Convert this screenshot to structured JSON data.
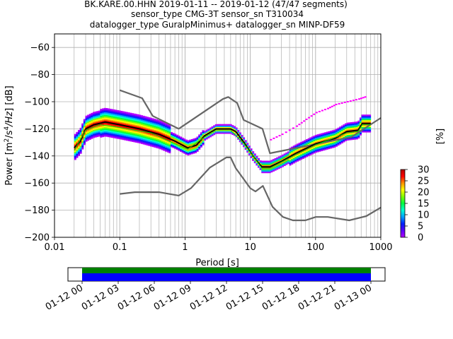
{
  "figure": {
    "title_lines": [
      "BK.KARE.00.HHN   2019-01-11 -- 2019-01-12  (47/47 segments)",
      "sensor_type CMG-3T sensor_sn T310034",
      "datalogger_type GuralpMinimus+ datalogger_sn MINP-DF59"
    ]
  },
  "chart_data": [
    {
      "type": "heatmap",
      "subtype": "ppsd",
      "xlabel": "Period [s]",
      "ylabel": "Power [$m^2/s^4/Hz$] [dB]",
      "xscale": "log",
      "xlim": [
        0.01,
        1000
      ],
      "ylim": [
        -200,
        -50
      ],
      "x_ticks": [
        0.01,
        0.1,
        1,
        10,
        100,
        1000
      ],
      "x_tick_labels": [
        "0.01",
        "0.1",
        "1",
        "10",
        "100",
        "1000"
      ],
      "y_ticks": [
        -200,
        -180,
        -160,
        -140,
        -120,
        -100,
        -80,
        -60
      ],
      "y_tick_labels": [
        "−200",
        "−180",
        "−160",
        "−140",
        "−120",
        "−100",
        "−80",
        "−60"
      ],
      "grid": true,
      "colorbar": {
        "label": "[%]",
        "range": [
          0,
          30
        ],
        "ticks": [
          0,
          5,
          10,
          15,
          20,
          25,
          30
        ],
        "tick_labels": [
          "0",
          "5",
          "10",
          "15",
          "20",
          "25",
          "30"
        ],
        "colors": [
          "#ffffff",
          "#b300ff",
          "#5a00ff",
          "#0020ff",
          "#00a0ff",
          "#00ffd0",
          "#00ff40",
          "#80ff00",
          "#ffff00",
          "#ff9000",
          "#ff0000",
          "#b00000"
        ]
      },
      "series": [
        {
          "role": "nhnm",
          "color": "#666666",
          "points": [
            [
              0.1,
              -91.5
            ],
            [
              0.22,
              -97.4
            ],
            [
              0.32,
              -110.5
            ],
            [
              0.8,
              -120
            ],
            [
              3.8,
              -98
            ],
            [
              4.6,
              -96.5
            ],
            [
              6.3,
              -101
            ],
            [
              7.9,
              -113.5
            ],
            [
              15.4,
              -120
            ],
            [
              20,
              -138
            ],
            [
              354.8,
              -126
            ],
            [
              1000,
              -112
            ]
          ]
        },
        {
          "role": "nlnm",
          "color": "#666666",
          "points": [
            [
              0.1,
              -168
            ],
            [
              0.17,
              -166.7
            ],
            [
              0.4,
              -166.7
            ],
            [
              0.8,
              -169.2
            ],
            [
              1.24,
              -163.7
            ],
            [
              2.4,
              -148.6
            ],
            [
              4.3,
              -141.1
            ],
            [
              5,
              -141.1
            ],
            [
              6,
              -149
            ],
            [
              10,
              -163.8
            ],
            [
              12,
              -166.2
            ],
            [
              15.6,
              -162.1
            ],
            [
              21.9,
              -177.5
            ],
            [
              31.6,
              -185
            ],
            [
              45,
              -187.5
            ],
            [
              70,
              -187.5
            ],
            [
              101,
              -185
            ],
            [
              154,
              -185
            ],
            [
              328,
              -187.5
            ],
            [
              600,
              -184.4
            ],
            [
              1000,
              -178
            ]
          ]
        },
        {
          "role": "mean",
          "color": "#000000",
          "points": [
            [
              0.02,
              -134
            ],
            [
              0.025,
              -129
            ],
            [
              0.03,
              -120
            ],
            [
              0.04,
              -117
            ],
            [
              0.06,
              -115
            ],
            [
              0.1,
              -117
            ],
            [
              0.2,
              -120
            ],
            [
              0.4,
              -124
            ],
            [
              0.7,
              -129
            ],
            [
              1.1,
              -134
            ],
            [
              1.5,
              -132
            ],
            [
              2,
              -125
            ],
            [
              3,
              -120
            ],
            [
              5,
              -120
            ],
            [
              6,
              -122
            ],
            [
              8,
              -130
            ],
            [
              11,
              -140
            ],
            [
              15,
              -148
            ],
            [
              20,
              -148
            ],
            [
              30,
              -144
            ],
            [
              50,
              -138
            ],
            [
              100,
              -131
            ],
            [
              200,
              -127
            ],
            [
              300,
              -122
            ],
            [
              450,
              -121
            ],
            [
              520,
              -116
            ],
            [
              700,
              -116
            ]
          ]
        },
        {
          "role": "mode",
          "color": "#00e000",
          "points": [
            [
              0.02,
              -136
            ],
            [
              0.03,
              -121
            ],
            [
              0.05,
              -117
            ],
            [
              0.1,
              -119
            ],
            [
              0.3,
              -123
            ],
            [
              0.7,
              -131
            ],
            [
              1.1,
              -135
            ],
            [
              2,
              -126
            ],
            [
              3,
              -121
            ],
            [
              5,
              -121
            ],
            [
              8,
              -131
            ],
            [
              15,
              -149
            ],
            [
              20,
              -149
            ],
            [
              50,
              -139
            ],
            [
              100,
              -132
            ],
            [
              300,
              -123
            ],
            [
              450,
              -122
            ],
            [
              520,
              -117
            ],
            [
              700,
              -117
            ]
          ]
        },
        {
          "role": "outlier",
          "color": "#ff00ff",
          "points": [
            [
              20,
              -128
            ],
            [
              30,
              -124
            ],
            [
              50,
              -118
            ],
            [
              70,
              -113
            ],
            [
              100,
              -108
            ],
            [
              150,
              -105
            ],
            [
              200,
              -102
            ],
            [
              300,
              -100
            ],
            [
              450,
              -98
            ],
            [
              600,
              -96
            ]
          ]
        }
      ]
    },
    {
      "type": "timeline",
      "x_tick_labels": [
        "01-12 00",
        "01-12 03",
        "01-12 06",
        "01-12 09",
        "01-12 12",
        "01-12 15",
        "01-12 18",
        "01-12 21",
        "01-13 00"
      ],
      "coverage_start": "01-12 00",
      "coverage_end": "01-13 00",
      "bands": [
        "#008000",
        "#0000ff"
      ]
    }
  ]
}
